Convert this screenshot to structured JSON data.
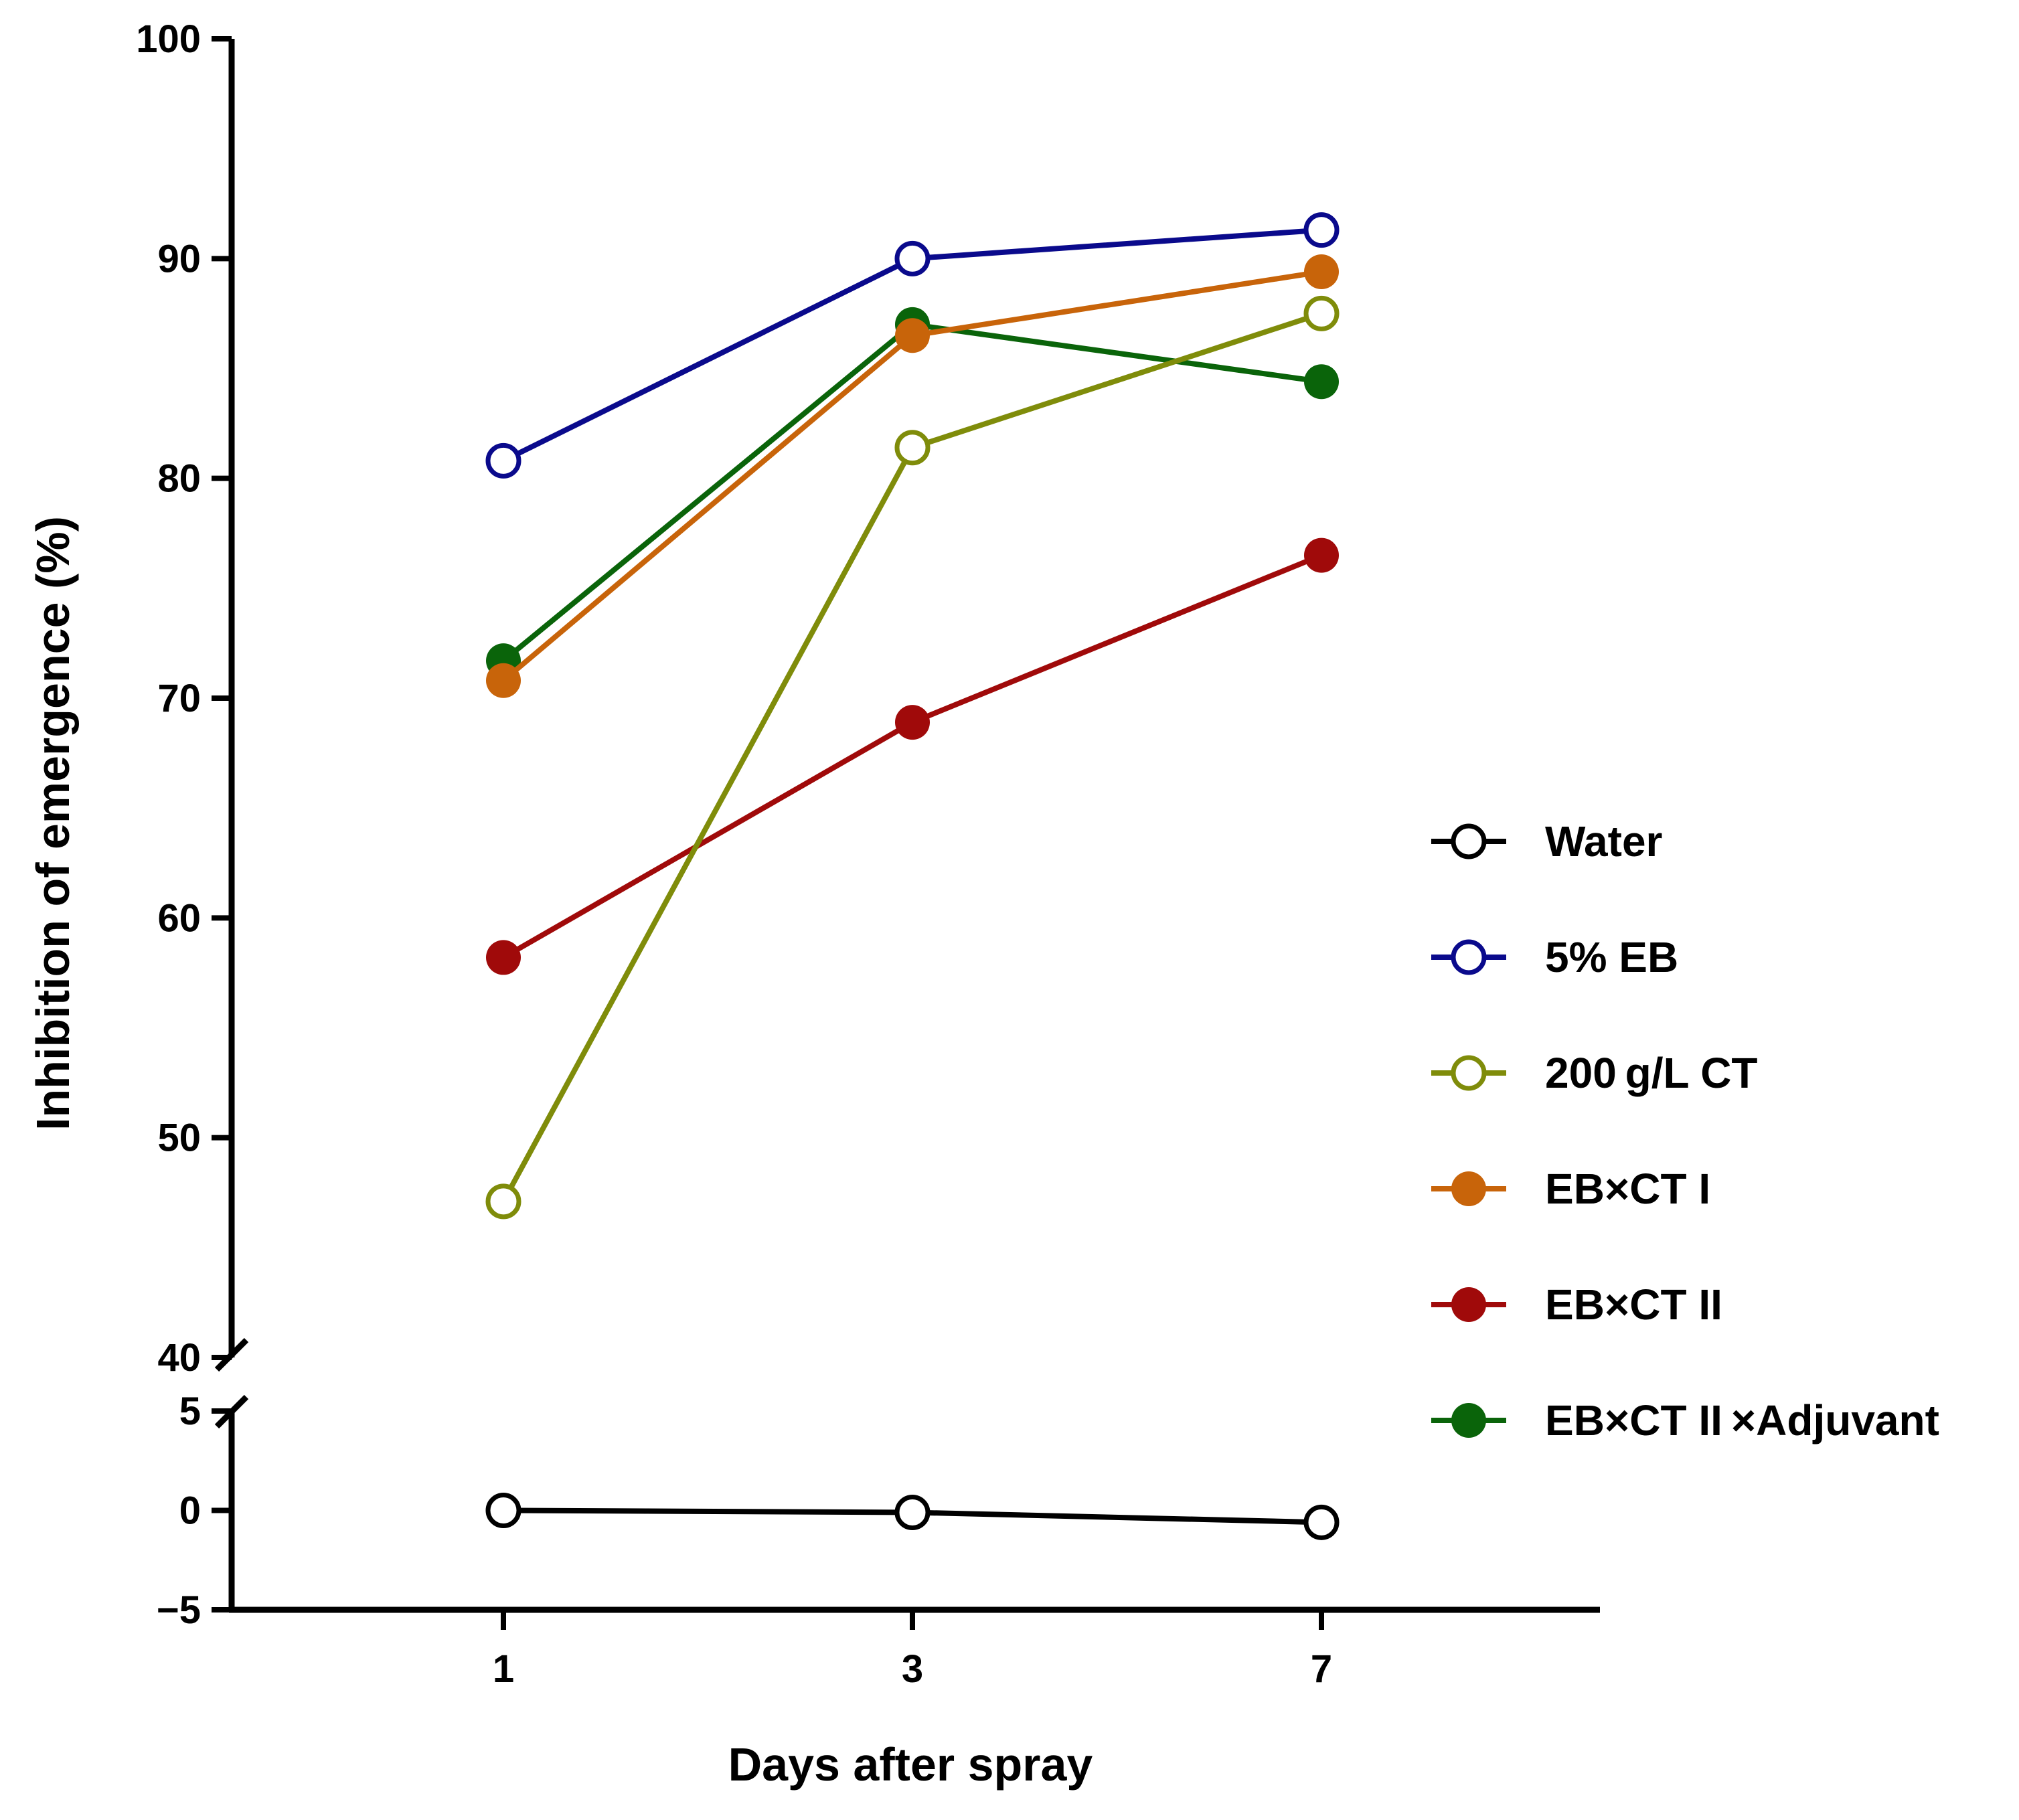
{
  "chart_data": {
    "type": "line",
    "title": "",
    "xlabel": "Days after spray",
    "ylabel": "Inhibition of emergence (%)",
    "categories": [
      "1",
      "3",
      "7"
    ],
    "y_upper_segment": {
      "range": [
        40,
        100
      ],
      "ticks": [
        "40",
        "50",
        "60",
        "70",
        "80",
        "90",
        "100"
      ]
    },
    "y_lower_segment": {
      "range": [
        -5,
        5
      ],
      "ticks": [
        "−5",
        "0",
        "5"
      ]
    },
    "axis_break": "between 5 and 40",
    "grid": false,
    "legend_position": "right",
    "series": [
      {
        "name": "Water",
        "color": "#000000",
        "marker": "open-circle",
        "values": [
          0.0,
          -0.1,
          -0.6
        ]
      },
      {
        "name": "5% EB",
        "color": "#0a0a8c",
        "marker": "open-circle",
        "values": [
          80.8,
          90.0,
          91.3
        ]
      },
      {
        "name": "200 g/L CT",
        "color": "#7f8c0a",
        "marker": "open-circle",
        "values": [
          47.1,
          81.4,
          87.5
        ]
      },
      {
        "name": "EB×CT I",
        "color": "#c8640a",
        "marker": "filled-circle",
        "values": [
          70.8,
          86.5,
          89.4
        ]
      },
      {
        "name": "EB×CT II",
        "color": "#a00a0a",
        "marker": "filled-circle",
        "values": [
          58.2,
          68.9,
          76.5
        ]
      },
      {
        "name": "EB×CT II ×Adjuvant",
        "color": "#0a640a",
        "marker": "filled-circle",
        "values": [
          71.7,
          87.0,
          84.4
        ]
      }
    ]
  }
}
